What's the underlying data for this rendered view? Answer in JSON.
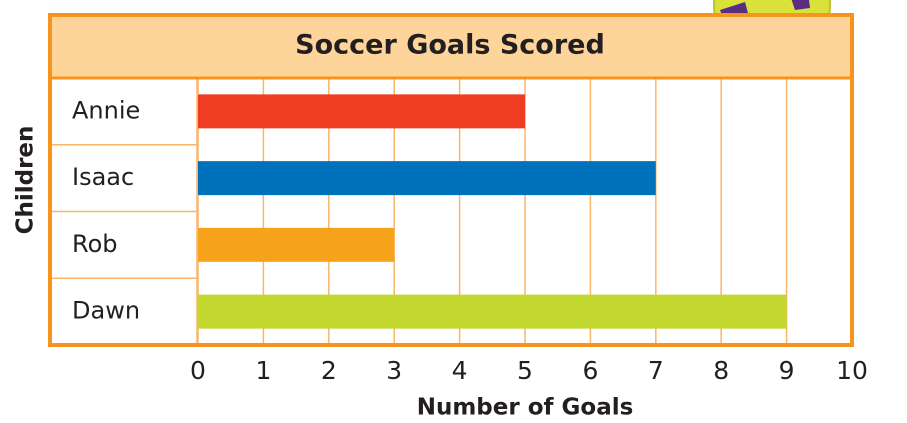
{
  "chart_data": {
    "type": "bar",
    "orientation": "horizontal",
    "title": "Soccer Goals Scored",
    "categories": [
      "Annie",
      "Isaac",
      "Rob",
      "Dawn"
    ],
    "values": [
      5,
      7,
      3,
      9
    ],
    "colors": [
      "#ee3d23",
      "#0072bc",
      "#f7a21b",
      "#c3d82e"
    ],
    "xlim": [
      0,
      10
    ],
    "xticks": [
      0,
      1,
      2,
      3,
      4,
      5,
      6,
      7,
      8,
      9,
      10
    ],
    "grid": true,
    "x_label": "Number of Goals",
    "y_label": "Children"
  }
}
